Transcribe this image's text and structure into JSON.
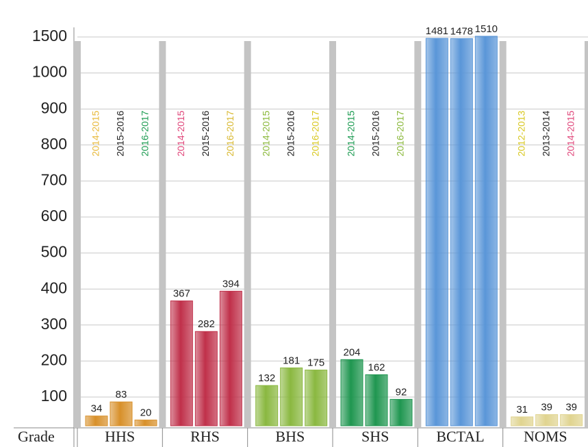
{
  "chart_data": {
    "type": "grouped-bar",
    "x_label": "Grade",
    "ylim": [
      0,
      1500
    ],
    "yticks": [
      100,
      200,
      300,
      400,
      500,
      600,
      700,
      800,
      900,
      1000,
      1500
    ],
    "grid": true,
    "groups": [
      {
        "name": "HHS",
        "color": "#d8902a",
        "years": [
          "2014-2015",
          "2015-2016",
          "2016-2017"
        ],
        "year_colors": [
          "#e8b93a",
          "#222222",
          "#1a9a50"
        ],
        "values": [
          34,
          83,
          20
        ]
      },
      {
        "name": "RHS",
        "color": "#c0304a",
        "years": [
          "2014-2015",
          "2015-2016",
          "2016-2017"
        ],
        "year_colors": [
          "#e0467a",
          "#222222",
          "#d8b830"
        ],
        "values": [
          367,
          282,
          394
        ]
      },
      {
        "name": "BHS",
        "color": "#8ab840",
        "years": [
          "2014-2015",
          "2015-2016",
          "2016-2017"
        ],
        "year_colors": [
          "#8ab83a",
          "#222222",
          "#d8c820"
        ],
        "values": [
          132,
          181,
          175
        ]
      },
      {
        "name": "SHS",
        "color": "#1f9650",
        "years": [
          "2014-2015",
          "2015-2016",
          "2016-2017"
        ],
        "year_colors": [
          "#1a9a50",
          "#222222",
          "#8ab83a"
        ],
        "values": [
          204,
          162,
          92
        ]
      },
      {
        "name": "BCTAL",
        "color": "#5a96d8",
        "values": [
          1481,
          1478,
          1510
        ]
      },
      {
        "name": "NOMS",
        "color": "#e0d490",
        "years": [
          "2012-2013",
          "2013-2014",
          "2014-2015"
        ],
        "year_colors": [
          "#d8c820",
          "#222222",
          "#e0467a"
        ],
        "values": [
          31,
          39,
          39
        ]
      }
    ]
  }
}
